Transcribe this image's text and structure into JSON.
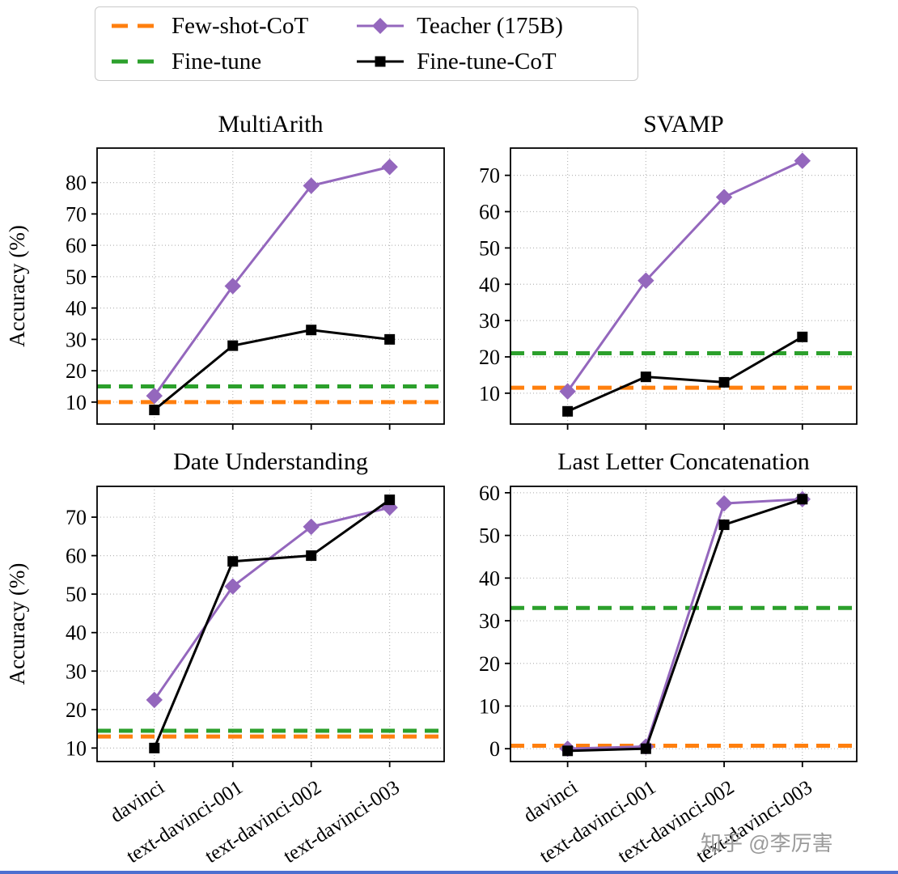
{
  "colors": {
    "few_shot_cot": "#ff7f0e",
    "fine_tune": "#2ca02c",
    "teacher": "#9467bd",
    "fine_tune_cot": "#000000",
    "accent_bar": "#4d6fd0"
  },
  "legend": {
    "items": [
      {
        "label": "Few-shot-CoT",
        "color": "#ff7f0e",
        "style": "dashed"
      },
      {
        "label": "Fine-tune",
        "color": "#2ca02c",
        "style": "dashed"
      },
      {
        "label": "Teacher (175B)",
        "color": "#9467bd",
        "style": "solid-diamond"
      },
      {
        "label": "Fine-tune-CoT",
        "color": "#000000",
        "style": "solid-square"
      }
    ]
  },
  "watermark": "知乎 @李厉害",
  "chart_data": [
    {
      "type": "line",
      "title": "MultiArith",
      "ylabel": "Accuracy (%)",
      "show_ylabel": true,
      "show_xticklabels": false,
      "grid": true,
      "x_categories": [
        "davinci",
        "text-davinci-001",
        "text-davinci-002",
        "text-davinci-003"
      ],
      "yticks": [
        10,
        20,
        30,
        40,
        50,
        60,
        70,
        80
      ],
      "ylim": [
        3,
        91
      ],
      "hlines": [
        {
          "name": "Few-shot-CoT",
          "value": 10,
          "color": "#ff7f0e"
        },
        {
          "name": "Fine-tune",
          "value": 15,
          "color": "#2ca02c"
        }
      ],
      "series": [
        {
          "name": "Teacher (175B)",
          "marker": "diamond",
          "color": "#9467bd",
          "values": [
            12,
            47,
            79,
            85
          ]
        },
        {
          "name": "Fine-tune-CoT",
          "marker": "square",
          "color": "#000000",
          "values": [
            7.5,
            28,
            33,
            30
          ]
        }
      ]
    },
    {
      "type": "line",
      "title": "SVAMP",
      "ylabel": "Accuracy (%)",
      "show_ylabel": false,
      "show_xticklabels": false,
      "grid": true,
      "x_categories": [
        "davinci",
        "text-davinci-001",
        "text-davinci-002",
        "text-davinci-003"
      ],
      "yticks": [
        10,
        20,
        30,
        40,
        50,
        60,
        70
      ],
      "ylim": [
        1.5,
        77.5
      ],
      "hlines": [
        {
          "name": "Few-shot-CoT",
          "value": 11.5,
          "color": "#ff7f0e"
        },
        {
          "name": "Fine-tune",
          "value": 21,
          "color": "#2ca02c"
        }
      ],
      "series": [
        {
          "name": "Teacher (175B)",
          "marker": "diamond",
          "color": "#9467bd",
          "values": [
            10.5,
            41,
            64,
            74
          ]
        },
        {
          "name": "Fine-tune-CoT",
          "marker": "square",
          "color": "#000000",
          "values": [
            5,
            14.5,
            13,
            25.5
          ]
        }
      ]
    },
    {
      "type": "line",
      "title": "Date Understanding",
      "ylabel": "Accuracy (%)",
      "show_ylabel": true,
      "show_xticklabels": true,
      "grid": true,
      "x_categories": [
        "davinci",
        "text-davinci-001",
        "text-davinci-002",
        "text-davinci-003"
      ],
      "yticks": [
        10,
        20,
        30,
        40,
        50,
        60,
        70
      ],
      "ylim": [
        6.5,
        78
      ],
      "hlines": [
        {
          "name": "Few-shot-CoT",
          "value": 13,
          "color": "#ff7f0e"
        },
        {
          "name": "Fine-tune",
          "value": 14.5,
          "color": "#2ca02c"
        }
      ],
      "series": [
        {
          "name": "Teacher (175B)",
          "marker": "diamond",
          "color": "#9467bd",
          "values": [
            22.5,
            52,
            67.5,
            72.5
          ]
        },
        {
          "name": "Fine-tune-CoT",
          "marker": "square",
          "color": "#000000",
          "values": [
            10,
            58.5,
            60,
            74.5
          ]
        }
      ]
    },
    {
      "type": "line",
      "title": "Last Letter Concatenation",
      "ylabel": "Accuracy (%)",
      "show_ylabel": false,
      "show_xticklabels": true,
      "grid": true,
      "x_categories": [
        "davinci",
        "text-davinci-001",
        "text-davinci-002",
        "text-davinci-003"
      ],
      "yticks": [
        0,
        10,
        20,
        30,
        40,
        50,
        60
      ],
      "ylim": [
        -3,
        61.5
      ],
      "hlines": [
        {
          "name": "Few-shot-CoT",
          "value": 0.7,
          "color": "#ff7f0e"
        },
        {
          "name": "Fine-tune",
          "value": 33,
          "color": "#2ca02c"
        }
      ],
      "series": [
        {
          "name": "Teacher (175B)",
          "marker": "diamond",
          "color": "#9467bd",
          "values": [
            0,
            0.5,
            57.5,
            58.5
          ]
        },
        {
          "name": "Fine-tune-CoT",
          "marker": "square",
          "color": "#000000",
          "values": [
            -0.5,
            0,
            52.5,
            58.5
          ]
        }
      ]
    }
  ]
}
